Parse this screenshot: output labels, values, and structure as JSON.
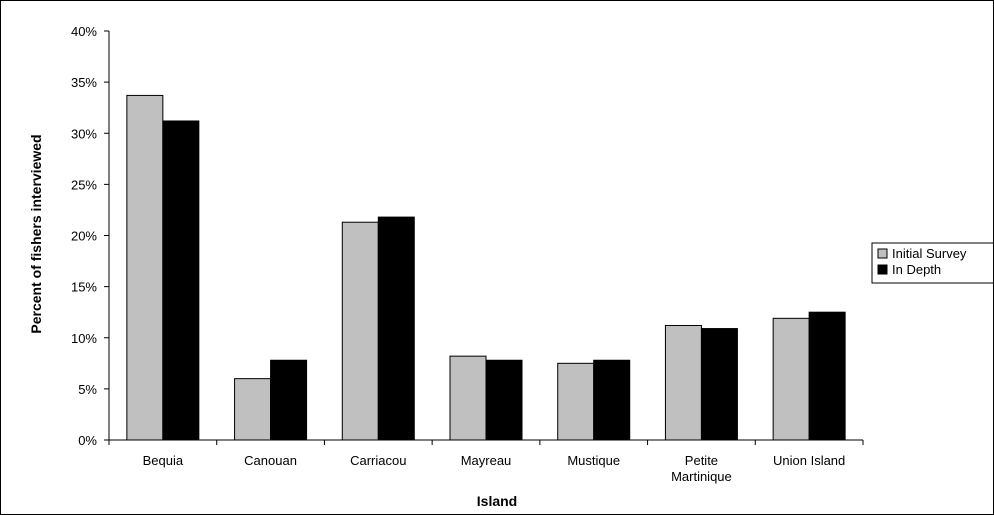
{
  "chart_data": {
    "type": "bar",
    "title": "",
    "xlabel": "Island",
    "ylabel": "Percent of fishers interviewed",
    "categories": [
      [
        "Bequia"
      ],
      [
        "Canouan"
      ],
      [
        "Carriacou"
      ],
      [
        "Mayreau"
      ],
      [
        "Mustique"
      ],
      [
        "Petite",
        "Martinique"
      ],
      [
        "Union Island"
      ]
    ],
    "series": [
      {
        "name": "Initial Survey",
        "color": "#c0c0c0",
        "values": [
          33.7,
          6.0,
          21.3,
          8.2,
          7.5,
          11.2,
          11.9
        ]
      },
      {
        "name": "In Depth",
        "color": "#000000",
        "values": [
          31.2,
          7.8,
          21.8,
          7.8,
          7.8,
          10.9,
          12.5
        ]
      }
    ],
    "ylim": [
      0,
      40
    ],
    "yticks": [
      "0%",
      "5%",
      "10%",
      "15%",
      "20%",
      "25%",
      "30%",
      "35%",
      "40%"
    ],
    "grid": false,
    "legend_position": "right"
  }
}
